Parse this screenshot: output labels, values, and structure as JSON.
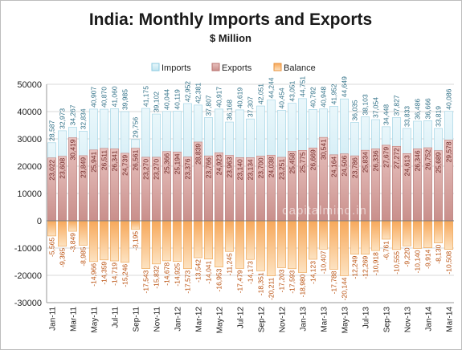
{
  "chart_data": {
    "type": "bar",
    "title": "India: Monthly Imports and Exports",
    "subtitle": "$ Million",
    "watermark": "capitalmind.in",
    "ylim": [
      -30000,
      50000
    ],
    "yticks": [
      50000,
      40000,
      30000,
      20000,
      10000,
      0,
      -10000,
      -20000,
      -30000
    ],
    "ytick_labels": [
      "50000",
      "40000",
      "30000",
      "20000",
      "10000",
      "0",
      "-10000",
      "-20000",
      "-30000"
    ],
    "legend": {
      "position": "top",
      "entries": [
        "Imports",
        "Exports",
        "Balance"
      ]
    },
    "colors": {
      "imports_fill": "#d2edf5",
      "imports_edge": "#9bd0e2",
      "exports_fill": "#dcaca9",
      "exports_edge": "#c07c78",
      "balance_fill": "#fbcf9b",
      "balance_edge": "#ec9f4a",
      "imports_label": "#2f6f86",
      "exports_label": "#6e2624",
      "balance_label": "#b94e0b"
    },
    "categories": [
      "Jan-11",
      "Feb-11",
      "Mar-11",
      "Apr-11",
      "May-11",
      "Jun-11",
      "Jul-11",
      "Aug-11",
      "Sep-11",
      "Oct-11",
      "Nov-11",
      "Dec-11",
      "Jan-12",
      "Feb-12",
      "Mar-12",
      "Apr-12",
      "May-12",
      "Jun-12",
      "Jul-12",
      "Aug-12",
      "Sep-12",
      "Oct-12",
      "Nov-12",
      "Dec-12",
      "Jan-13",
      "Feb-13",
      "Mar-13",
      "Apr-13",
      "May-13",
      "Jun-13",
      "Jul-13",
      "Aug-13",
      "Sep-13",
      "Oct-13",
      "Nov-13",
      "Dec-13",
      "Jan-14",
      "Feb-14",
      "Mar-14"
    ],
    "x_labels_shown": [
      "Jan-11",
      "Mar-11",
      "May-11",
      "Jul-11",
      "Sep-11",
      "Nov-11",
      "Jan-12",
      "Mar-12",
      "May-12",
      "Jul-12",
      "Sep-12",
      "Nov-12",
      "Jan-13",
      "Mar-13",
      "May-13",
      "Jul-13",
      "Sep-13",
      "Nov-13",
      "Jan-14",
      "Mar-14"
    ],
    "series": [
      {
        "name": "Imports",
        "values": [
          28587,
          32973,
          34267,
          32834,
          40907,
          40870,
          41060,
          39985,
          29756,
          41175,
          39102,
          40044,
          40119,
          42952,
          42381,
          37807,
          40917,
          36168,
          40619,
          37307,
          42051,
          44244,
          40454,
          43051,
          44751,
          40792,
          40948,
          41952,
          44649,
          36035,
          38103,
          37054,
          34448,
          37827,
          33833,
          36486,
          36666,
          33819,
          40086
        ]
      },
      {
        "name": "Exports",
        "values": [
          23022,
          23608,
          30419,
          23849,
          25941,
          26511,
          26341,
          24739,
          26561,
          23270,
          23270,
          25366,
          25194,
          23376,
          28839,
          23766,
          24923,
          23963,
          23140,
          23134,
          23700,
          24038,
          23251,
          25458,
          25775,
          26669,
          30541,
          24164,
          24506,
          23786,
          25834,
          26336,
          27679,
          27272,
          24613,
          26346,
          26752,
          25689,
          29578
        ]
      },
      {
        "name": "Balance",
        "values": [
          -5565,
          -9365,
          -3849,
          -8985,
          -14966,
          -14359,
          -14719,
          -15246,
          -3195,
          -17543,
          -15832,
          -14678,
          -14925,
          -17573,
          -13542,
          -14041,
          -16953,
          -11245,
          -17479,
          -14173,
          -18351,
          -20211,
          -17203,
          -17593,
          -18980,
          -14123,
          -10407,
          -17788,
          -20144,
          -12249,
          -12269,
          -10918,
          -6761,
          -10555,
          -9220,
          -10140,
          -9914,
          -8130,
          -10508
        ]
      }
    ],
    "data_labels": {
      "Imports": [
        "28,587",
        "32,973",
        "34,267",
        "32,834",
        "40,907",
        "40,870",
        "41,060",
        "39,985",
        "29,756",
        "41,175",
        "39,102",
        "40,044",
        "40,119",
        "42,952",
        "42,381",
        "37,807",
        "40,917",
        "36,168",
        "40,619",
        "37,307",
        "42,051",
        "44,244",
        "40,454",
        "43,051",
        "44,751",
        "40,792",
        "40,948",
        "41,952",
        "44,649",
        "36,035",
        "38,103",
        "37,054",
        "34,448",
        "37,827",
        "33,833",
        "36,486",
        "36,666",
        "33,819",
        "40,086"
      ],
      "Exports": [
        "23,022",
        "23,608",
        "30,419",
        "23,849",
        "25,941",
        "26,511",
        "26,341",
        "24,739",
        "26,561",
        "23,270",
        "23,270",
        "25,366",
        "25,194",
        "23,376",
        "28,839",
        "23,766",
        "24,923",
        "23,963",
        "23,140",
        "23,134",
        "23,700",
        "24,038",
        "23,251",
        "25,458",
        "25,775",
        "26,669",
        "30,541",
        "24,164",
        "24,506",
        "23,786",
        "25,834",
        "26,336",
        "27,679",
        "27,272",
        "24,613",
        "26,346",
        "26,752",
        "25,689",
        "29,578"
      ],
      "Balance": [
        "-5,565",
        "-9,365",
        "-3,849",
        "-8,985",
        "-14,966",
        "-14,359",
        "-14,719",
        "-15,246",
        "-3,195",
        "-17,543",
        "-15,832",
        "-14,678",
        "-14,925",
        "-17,573",
        "-13,542",
        "-14,041",
        "-16,953",
        "-11,245",
        "-17,479",
        "-14,173",
        "-18,351",
        "-20,211",
        "-17,203",
        "-17,593",
        "-18,980",
        "-14,123",
        "-10,407",
        "-17,788",
        "-20,144",
        "-12,249",
        "-12,269",
        "-10,918",
        "-6,761",
        "-10,555",
        "-9,220",
        "-10,140",
        "-9,914",
        "-8,130",
        "-10,508"
      ]
    }
  }
}
